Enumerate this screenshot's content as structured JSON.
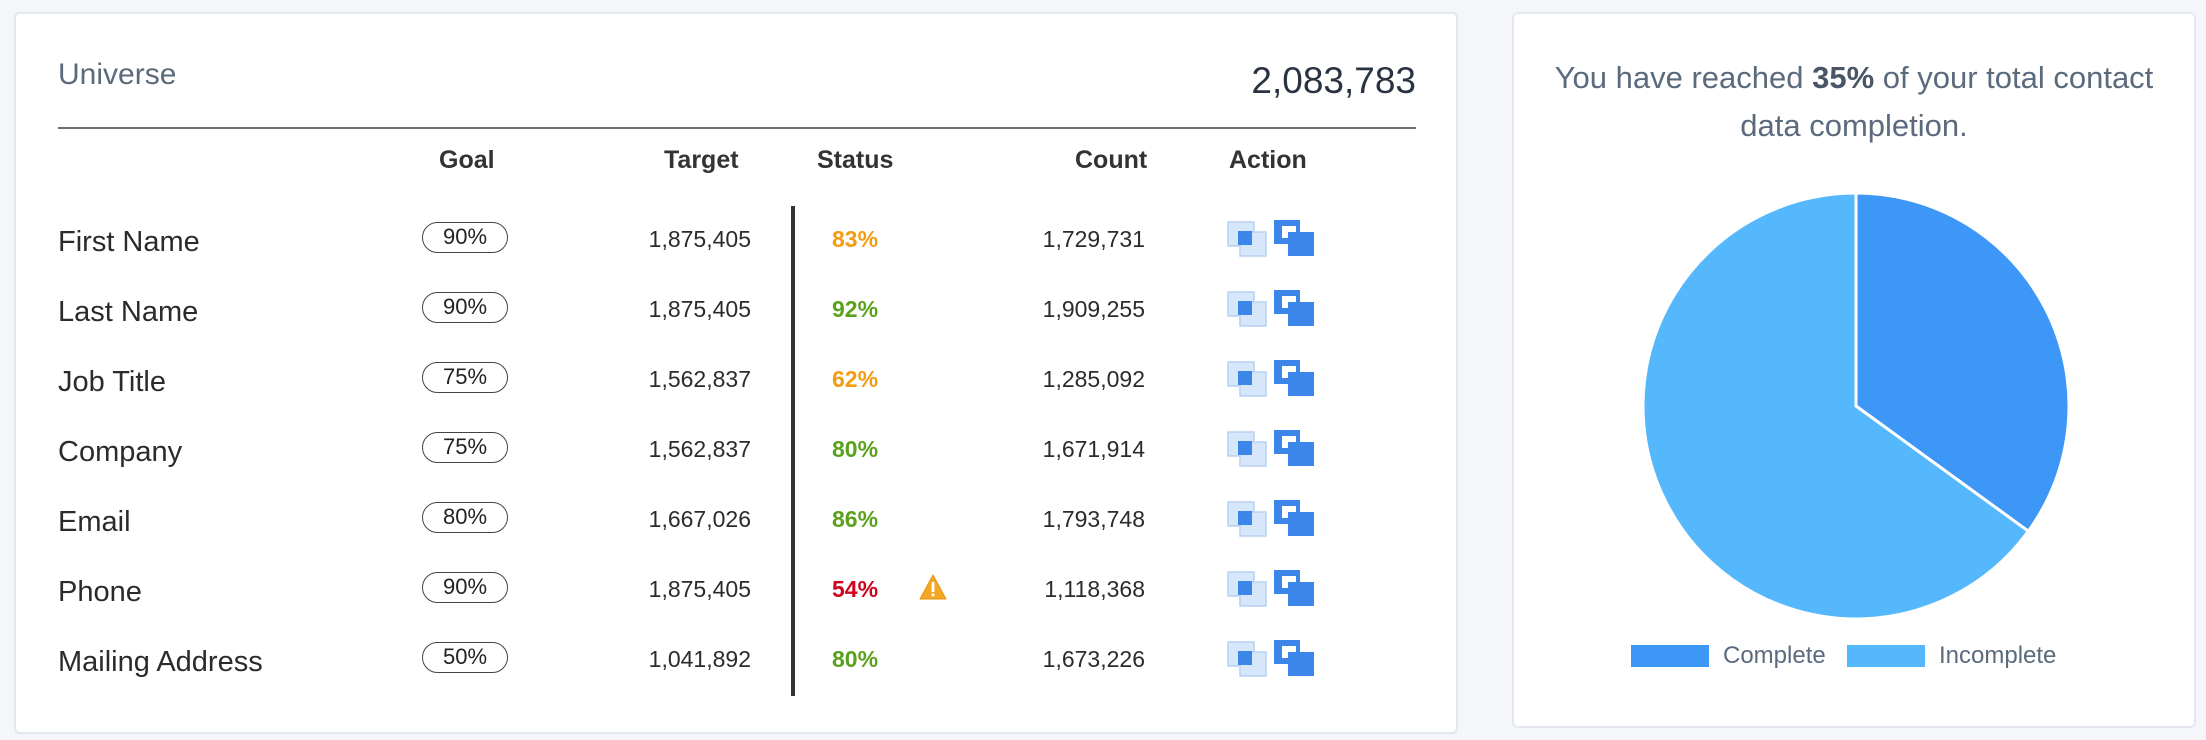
{
  "universe": {
    "title": "Universe",
    "count": "2,083,783"
  },
  "columns": {
    "goal": "Goal",
    "target": "Target",
    "status": "Status",
    "count": "Count",
    "action": "Action"
  },
  "rows": [
    {
      "label": "First Name",
      "goal": "90%",
      "target": "1,875,405",
      "status": "83%",
      "status_color": "#f39c12",
      "warning": false,
      "count": "1,729,731"
    },
    {
      "label": "Last Name",
      "goal": "90%",
      "target": "1,875,405",
      "status": "92%",
      "status_color": "#5aa21b",
      "warning": false,
      "count": "1,909,255"
    },
    {
      "label": "Job Title",
      "goal": "75%",
      "target": "1,562,837",
      "status": "62%",
      "status_color": "#f39c12",
      "warning": false,
      "count": "1,285,092"
    },
    {
      "label": "Company",
      "goal": "75%",
      "target": "1,562,837",
      "status": "80%",
      "status_color": "#5aa21b",
      "warning": false,
      "count": "1,671,914"
    },
    {
      "label": "Email",
      "goal": "80%",
      "target": "1,667,026",
      "status": "86%",
      "status_color": "#5aa21b",
      "warning": false,
      "count": "1,793,748"
    },
    {
      "label": "Phone",
      "goal": "90%",
      "target": "1,875,405",
      "status": "54%",
      "status_color": "#d0021b",
      "warning": true,
      "count": "1,118,368"
    },
    {
      "label": "Mailing Address",
      "goal": "50%",
      "target": "1,041,892",
      "status": "80%",
      "status_color": "#5aa21b",
      "warning": false,
      "count": "1,673,226"
    }
  ],
  "completion": {
    "prefix": "You have reached ",
    "percent": "35%",
    "suffix": " of your total contact data completion."
  },
  "chart_data": {
    "type": "pie",
    "categories": [
      "Complete",
      "Incomplete"
    ],
    "values": [
      35,
      65
    ],
    "colors": [
      "#3d97f7",
      "#56b8fc"
    ],
    "legend": "bottom"
  },
  "icons": {
    "warning": "warning-triangle-icon",
    "action_1": "select-area-icon",
    "action_2": "duplicate-icon"
  }
}
